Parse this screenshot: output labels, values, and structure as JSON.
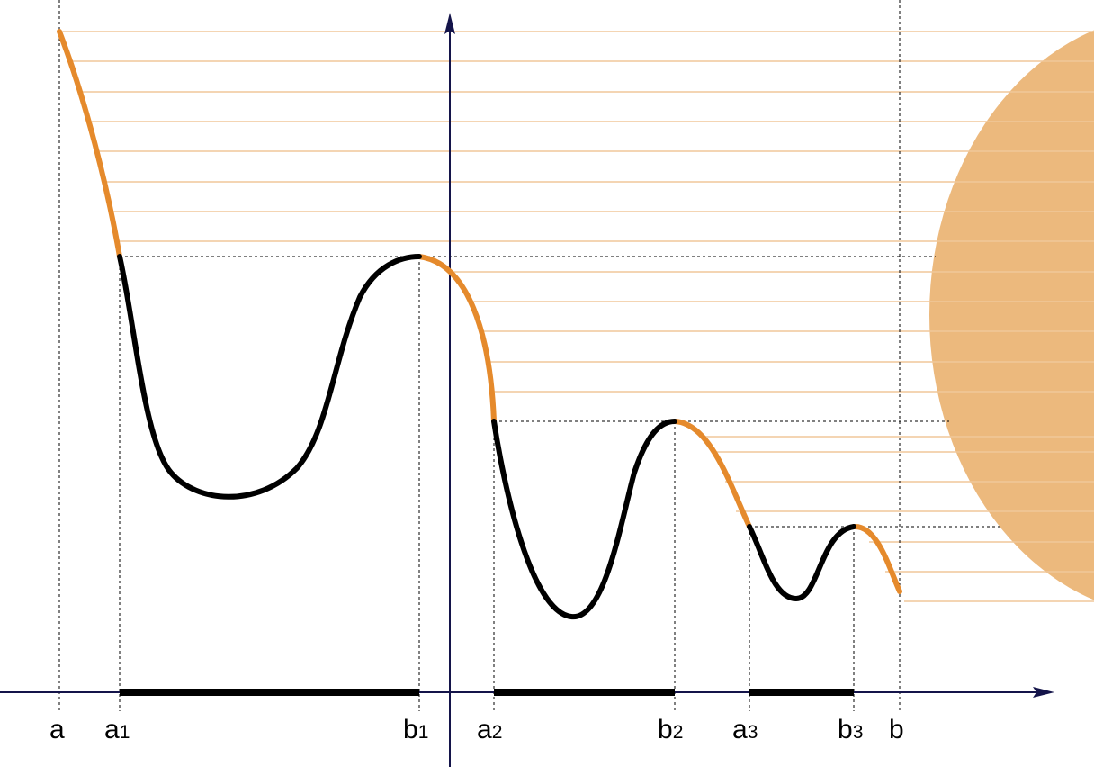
{
  "colors": {
    "background": "#ffffff",
    "axis": "#14144a",
    "curve_black": "#000000",
    "curve_orange": "#e58a2c",
    "shadow_lines": "#f0c79a",
    "sun": "#ecb97d",
    "guides": "#000000"
  },
  "labels": {
    "a": {
      "main": "a",
      "sub": ""
    },
    "a1": {
      "main": "a",
      "sub": "1"
    },
    "b1": {
      "main": "b",
      "sub": "1"
    },
    "a2": {
      "main": "a",
      "sub": "2"
    },
    "b2": {
      "main": "b",
      "sub": "2"
    },
    "a3": {
      "main": "a",
      "sub": "3"
    },
    "b3": {
      "main": "b",
      "sub": "3"
    },
    "b": {
      "main": "b",
      "sub": ""
    }
  }
}
